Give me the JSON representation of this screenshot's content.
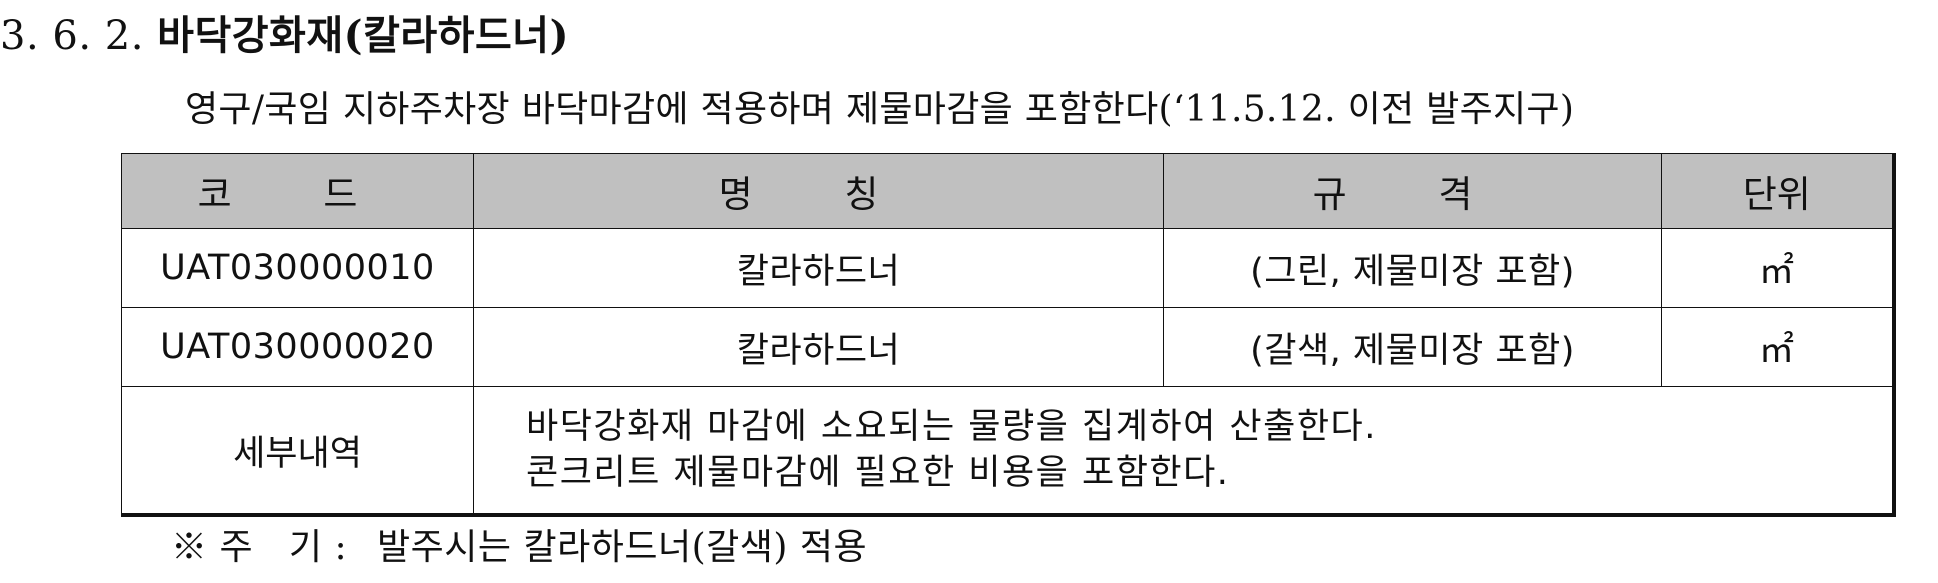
{
  "heading": {
    "number": "3. 6. 2.",
    "title": "바닥강화재(칼라하드너)"
  },
  "intro": "영구/국임 지하주차장 바닥마감에 적용하며 제물마감을 포함한다(‘11.5.12. 이전 발주지구)",
  "table": {
    "headers": {
      "code": "코 드",
      "name": "명 칭",
      "spec": "규 격",
      "unit": "단위"
    },
    "rows": [
      {
        "code": "UAT030000010",
        "name": "칼라하드너",
        "spec": "(그린, 제물미장 포함)",
        "unit": "㎡"
      },
      {
        "code": "UAT030000020",
        "name": "칼라하드너",
        "spec": "(갈색, 제물미장 포함)",
        "unit": "㎡"
      }
    ],
    "detail": {
      "label": "세부내역",
      "lines": [
        "바닥강화재 마감에 소요되는 물량을 집계하여 산출한다.",
        "콘크리트 제물마감에 필요한 비용을 포함한다."
      ]
    }
  },
  "note": {
    "mark": "※ 주   기 :",
    "text": "발주시는 칼라하드너(갈색) 적용"
  }
}
